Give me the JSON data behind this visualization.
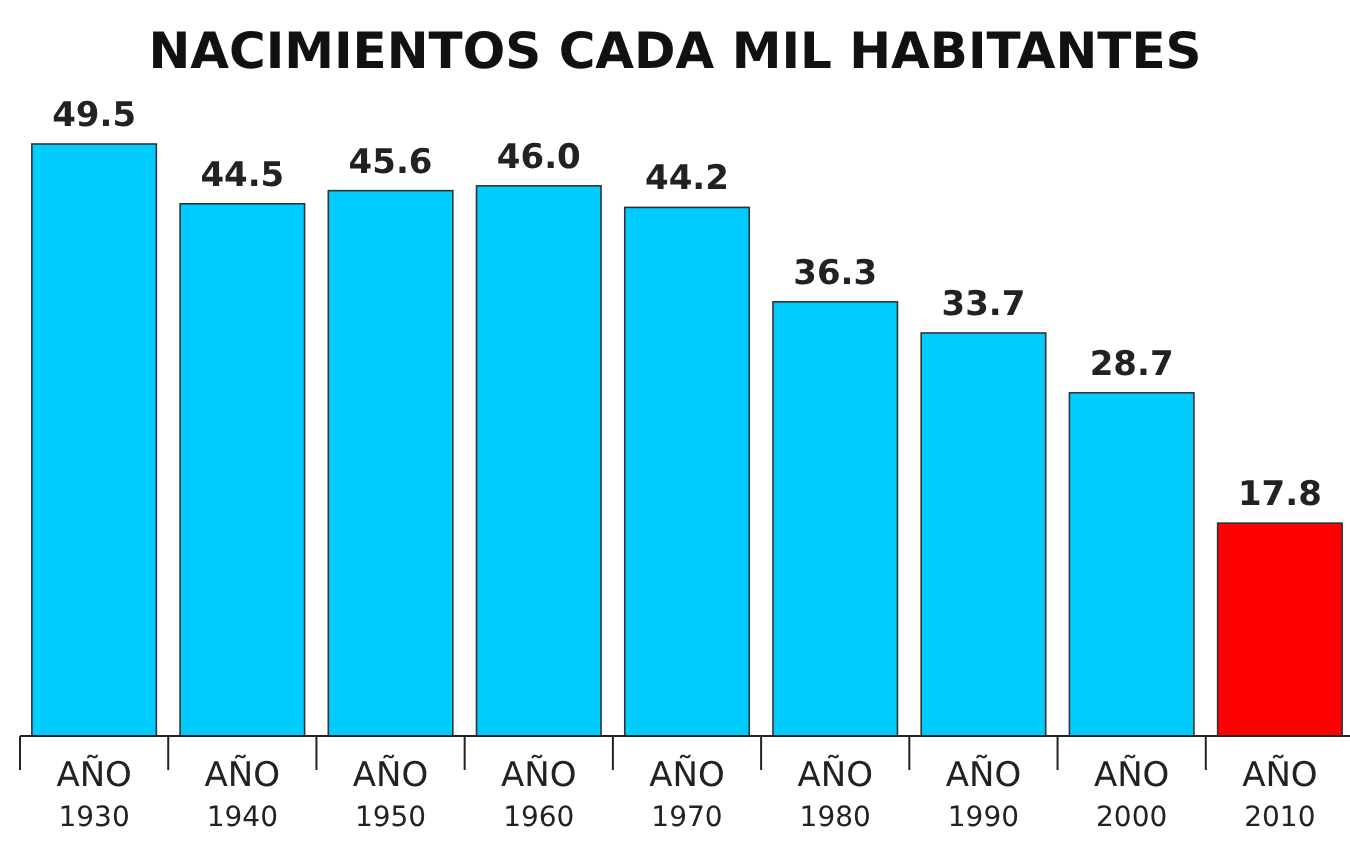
{
  "chart_data": {
    "type": "bar",
    "title": "NACIMIENTOS CADA MIL HABITANTES",
    "categories": [
      "AÑO 1930",
      "AÑO 1940",
      "AÑO 1950",
      "AÑO 1960",
      "AÑO 1970",
      "AÑO 1980",
      "AÑO 1990",
      "AÑO 2000",
      "AÑO 2010"
    ],
    "values": [
      49.5,
      44.5,
      45.6,
      46.0,
      44.2,
      36.3,
      33.7,
      28.7,
      17.8
    ],
    "colors": [
      "#00ccff",
      "#00ccff",
      "#00ccff",
      "#00ccff",
      "#00ccff",
      "#00ccff",
      "#00ccff",
      "#00ccff",
      "#ff0000"
    ],
    "value_labels": [
      "49.5",
      "44.5",
      "45.6",
      "46.0",
      "44.2",
      "36.3",
      "33.7",
      "28.7",
      "17.8"
    ]
  }
}
